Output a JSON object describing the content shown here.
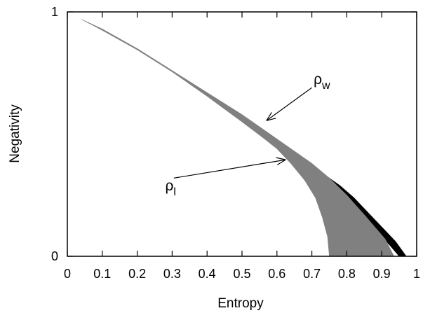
{
  "chart_data": {
    "type": "area",
    "xlabel": "Entropy",
    "ylabel": "Negativity",
    "xlim": [
      0,
      1
    ],
    "ylim": [
      0,
      1
    ],
    "x_ticks": [
      "0",
      "0.1",
      "0.2",
      "0.3",
      "0.4",
      "0.5",
      "0.6",
      "0.7",
      "0.8",
      "0.9",
      "1"
    ],
    "y_ticks": [
      "0",
      "1"
    ],
    "grid": false,
    "colors": {
      "light_region": "#808080",
      "dark_region": "#000000",
      "axes": "#000000"
    },
    "regions": [
      {
        "fill": "dark",
        "upper_boundary": [
          [
            0.74,
            0.33
          ],
          [
            0.78,
            0.29
          ],
          [
            0.82,
            0.24
          ],
          [
            0.86,
            0.18
          ],
          [
            0.9,
            0.12
          ],
          [
            0.94,
            0.06
          ],
          [
            0.97,
            0.0
          ]
        ],
        "lower_boundary": [
          [
            0.74,
            0.33
          ],
          [
            0.78,
            0.27
          ],
          [
            0.82,
            0.21
          ],
          [
            0.86,
            0.15
          ],
          [
            0.89,
            0.1
          ],
          [
            0.92,
            0.05
          ],
          [
            0.95,
            0.0
          ]
        ]
      },
      {
        "fill": "light",
        "upper_boundary": [
          [
            0.04,
            0.97
          ],
          [
            0.1,
            0.93
          ],
          [
            0.2,
            0.85
          ],
          [
            0.3,
            0.76
          ],
          [
            0.4,
            0.67
          ],
          [
            0.5,
            0.58
          ],
          [
            0.56,
            0.52
          ],
          [
            0.6,
            0.48
          ],
          [
            0.65,
            0.43
          ],
          [
            0.7,
            0.38
          ],
          [
            0.75,
            0.32
          ],
          [
            0.8,
            0.25
          ],
          [
            0.85,
            0.17
          ],
          [
            0.88,
            0.12
          ],
          [
            0.91,
            0.07
          ],
          [
            0.935,
            0.0
          ]
        ],
        "lower_boundary": [
          [
            0.04,
            0.97
          ],
          [
            0.1,
            0.925
          ],
          [
            0.2,
            0.845
          ],
          [
            0.3,
            0.755
          ],
          [
            0.4,
            0.655
          ],
          [
            0.5,
            0.55
          ],
          [
            0.56,
            0.485
          ],
          [
            0.6,
            0.44
          ],
          [
            0.64,
            0.38
          ],
          [
            0.68,
            0.31
          ],
          [
            0.71,
            0.24
          ],
          [
            0.73,
            0.16
          ],
          [
            0.745,
            0.08
          ],
          [
            0.75,
            0.0
          ]
        ]
      }
    ],
    "annotations": [
      {
        "base": "ρ",
        "sub": "w",
        "text_at": [
          0.705,
          0.705
        ],
        "arrow_from": [
          0.7,
          0.69
        ],
        "arrow_to": [
          0.57,
          0.555
        ]
      },
      {
        "base": "ρ",
        "sub": "l",
        "text_at": [
          0.28,
          0.27
        ],
        "arrow_from": [
          0.305,
          0.32
        ],
        "arrow_to": [
          0.625,
          0.395
        ]
      }
    ]
  }
}
